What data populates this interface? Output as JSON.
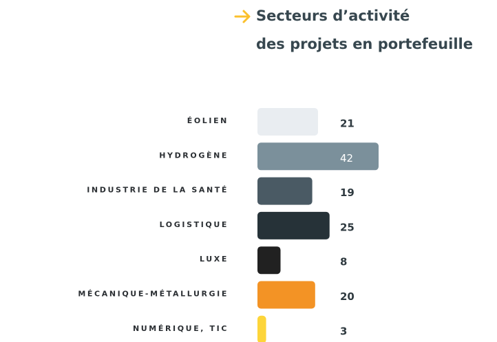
{
  "chart_data": {
    "type": "bar",
    "orientation": "horizontal",
    "title_lines": [
      "Secteurs d’activité",
      "des projets en portefeuille"
    ],
    "categories": [
      "ÉOLIEN",
      "HYDROGÈNE",
      "INDUSTRIE DE LA SANTÉ",
      "LOGISTIQUE",
      "LUXE",
      "MÉCANIQUE-MÉTALLURGIE",
      "NUMÉRIQUE, TIC"
    ],
    "values": [
      21,
      42,
      19,
      25,
      8,
      20,
      3
    ],
    "colors": [
      "#e9edf1",
      "#7b909b",
      "#4a5a64",
      "#263238",
      "#212121",
      "#f39325",
      "#fdd53a"
    ]
  }
}
